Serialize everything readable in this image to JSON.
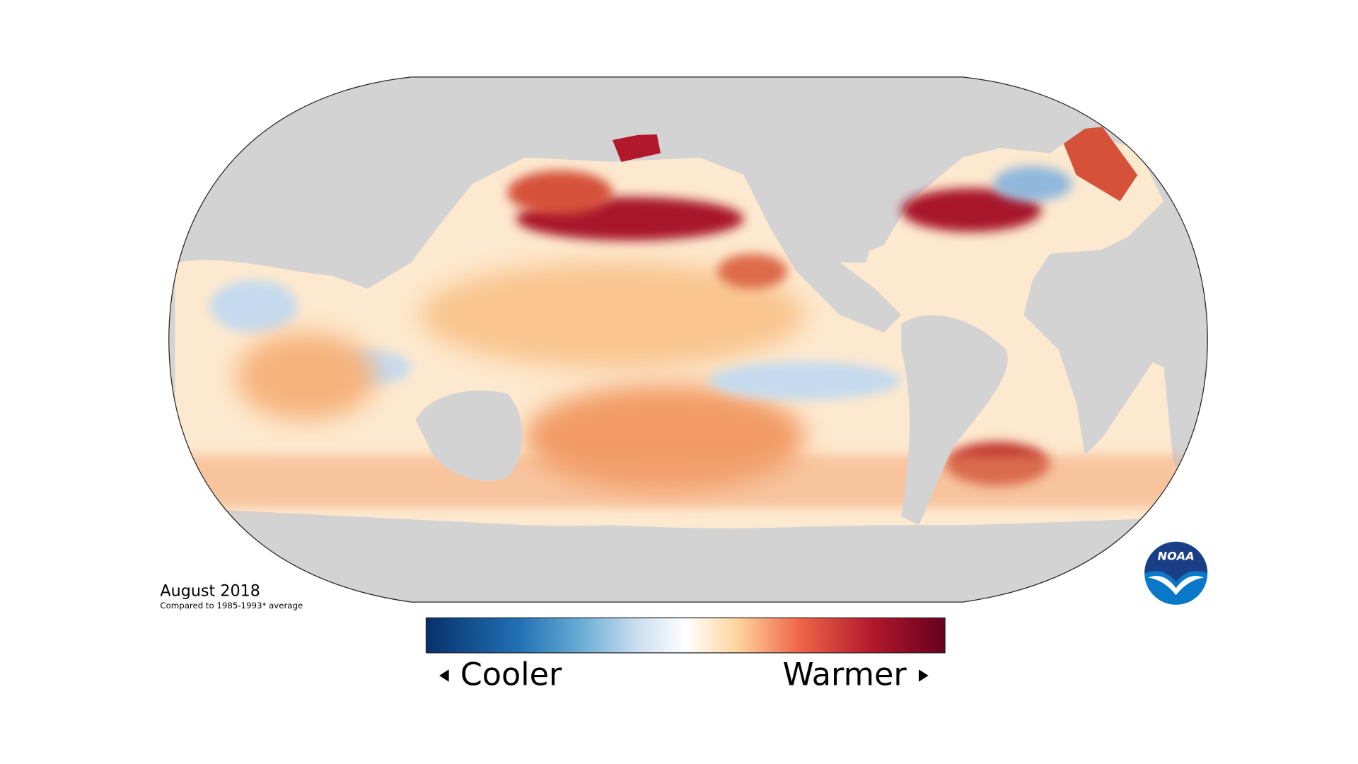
{
  "map": {
    "title": "August 2018",
    "subtitle": "Compared to 1985-1993* average",
    "legend": {
      "low_label": "Cooler",
      "high_label": "Warmer"
    },
    "logo": "NOAA"
  }
}
